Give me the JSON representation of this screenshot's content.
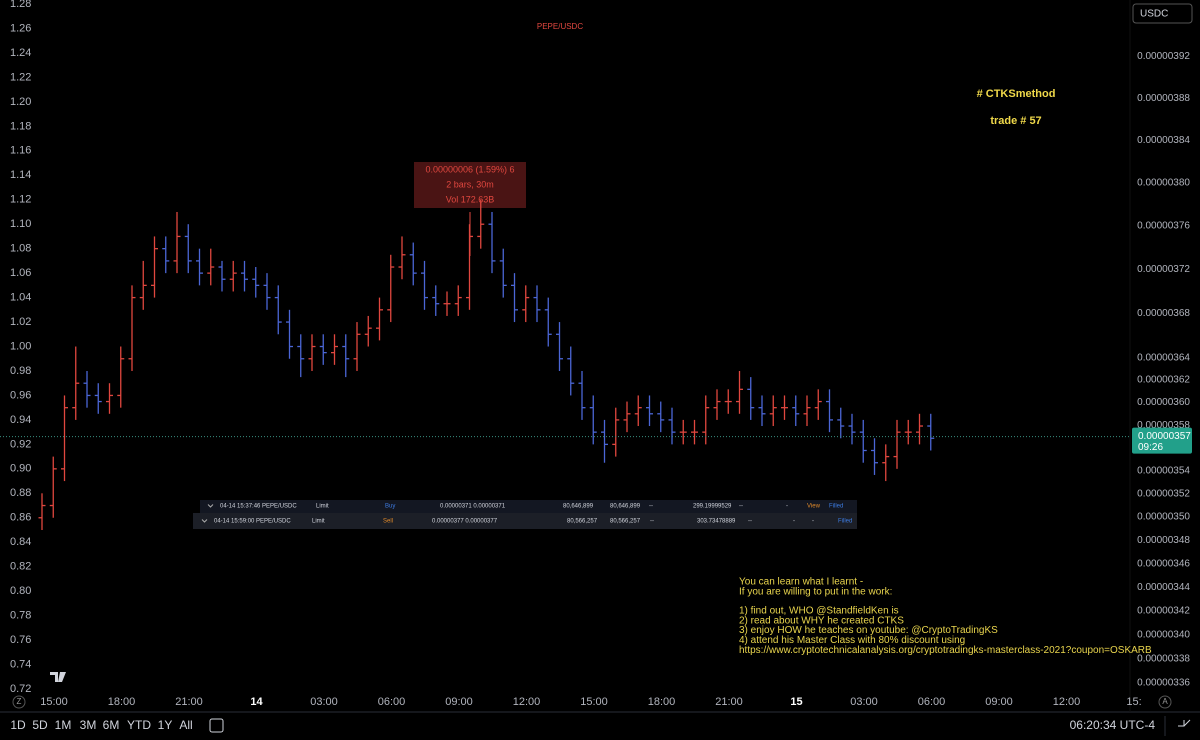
{
  "chart_data": {
    "type": "candlestick",
    "title": "PEPE/USDC",
    "up_color": "#e0473f",
    "down_color": "#4b66d6",
    "open": [
      0.86,
      0.87,
      0.9,
      0.95,
      0.97,
      0.96,
      0.955,
      0.96,
      0.99,
      1.04,
      1.05,
      1.08,
      1.07,
      1.09,
      1.07,
      1.06,
      1.065,
      1.055,
      1.06,
      1.055,
      1.05,
      1.04,
      1.02,
      1.0,
      0.99,
      1.0,
      0.995,
      1.0,
      0.99,
      1.01,
      1.015,
      1.03,
      1.065,
      1.075,
      1.06,
      1.04,
      1.035,
      1.035,
      1.04,
      1.09,
      1.1,
      1.07,
      1.05,
      1.03,
      1.04,
      1.03,
      1.01,
      0.99,
      0.97,
      0.95,
      0.93,
      0.92,
      0.94,
      0.945,
      0.95,
      0.945,
      0.94,
      0.93,
      0.93,
      0.93,
      0.95,
      0.955,
      0.955,
      0.965,
      0.95,
      0.945,
      0.95,
      0.95,
      0.945,
      0.95,
      0.955,
      0.94,
      0.935,
      0.93,
      0.915,
      0.905,
      0.91,
      0.93,
      0.93,
      0.935
    ],
    "high": [
      0.88,
      0.91,
      0.96,
      1.0,
      0.98,
      0.97,
      0.97,
      1.0,
      1.05,
      1.07,
      1.09,
      1.09,
      1.11,
      1.1,
      1.08,
      1.08,
      1.07,
      1.07,
      1.07,
      1.065,
      1.06,
      1.05,
      1.03,
      1.01,
      1.01,
      1.01,
      1.01,
      1.01,
      1.02,
      1.025,
      1.04,
      1.075,
      1.09,
      1.085,
      1.07,
      1.05,
      1.045,
      1.05,
      1.1,
      1.12,
      1.11,
      1.08,
      1.06,
      1.05,
      1.05,
      1.04,
      1.02,
      1.0,
      0.98,
      0.96,
      0.94,
      0.95,
      0.955,
      0.96,
      0.96,
      0.955,
      0.95,
      0.94,
      0.94,
      0.96,
      0.965,
      0.965,
      0.98,
      0.975,
      0.96,
      0.96,
      0.96,
      0.96,
      0.96,
      0.965,
      0.965,
      0.95,
      0.945,
      0.94,
      0.925,
      0.92,
      0.94,
      0.94,
      0.945,
      0.945
    ],
    "low": [
      0.85,
      0.86,
      0.89,
      0.94,
      0.95,
      0.945,
      0.945,
      0.95,
      0.98,
      1.03,
      1.04,
      1.06,
      1.06,
      1.06,
      1.05,
      1.05,
      1.045,
      1.045,
      1.045,
      1.04,
      1.03,
      1.01,
      0.99,
      0.975,
      0.98,
      0.985,
      0.985,
      0.975,
      0.98,
      1.0,
      1.005,
      1.02,
      1.055,
      1.05,
      1.03,
      1.025,
      1.025,
      1.025,
      1.03,
      1.08,
      1.06,
      1.04,
      1.02,
      1.02,
      1.02,
      1.0,
      0.98,
      0.96,
      0.94,
      0.92,
      0.905,
      0.91,
      0.93,
      0.935,
      0.935,
      0.93,
      0.92,
      0.92,
      0.92,
      0.92,
      0.94,
      0.945,
      0.945,
      0.94,
      0.935,
      0.935,
      0.94,
      0.935,
      0.935,
      0.94,
      0.93,
      0.925,
      0.92,
      0.905,
      0.895,
      0.89,
      0.9,
      0.92,
      0.92,
      0.915
    ],
    "close": [
      0.87,
      0.9,
      0.95,
      0.97,
      0.96,
      0.955,
      0.96,
      0.99,
      1.04,
      1.05,
      1.08,
      1.07,
      1.09,
      1.07,
      1.06,
      1.065,
      1.055,
      1.06,
      1.055,
      1.05,
      1.04,
      1.02,
      1.0,
      0.99,
      1.0,
      0.995,
      1.0,
      0.99,
      1.01,
      1.015,
      1.03,
      1.065,
      1.075,
      1.06,
      1.04,
      1.035,
      1.035,
      1.04,
      1.09,
      1.1,
      1.07,
      1.05,
      1.03,
      1.04,
      1.03,
      1.01,
      0.99,
      0.97,
      0.95,
      0.93,
      0.92,
      0.94,
      0.945,
      0.95,
      0.945,
      0.94,
      0.93,
      0.93,
      0.93,
      0.95,
      0.955,
      0.955,
      0.965,
      0.95,
      0.945,
      0.95,
      0.95,
      0.945,
      0.95,
      0.955,
      0.94,
      0.935,
      0.93,
      0.915,
      0.905,
      0.91,
      0.93,
      0.93,
      0.935,
      0.925
    ],
    "xticks": [
      "15:00",
      "18:00",
      "21:00",
      "14",
      "03:00",
      "06:00",
      "09:00",
      "12:00",
      "15:00",
      "18:00",
      "21:00",
      "15",
      "03:00",
      "06:00",
      "09:00",
      "12:00",
      "15:"
    ],
    "ylim": [
      0.7151,
      1.2833
    ],
    "yticks": [
      1.28,
      1.26,
      1.24,
      1.22,
      {
        "value": 1.2,
        "label": "1.20"
      },
      1.18,
      1.16,
      1.14,
      1.12,
      {
        "value": 1.1,
        "label": "1.10"
      },
      1.08,
      1.06,
      1.04,
      1.02,
      {
        "value": 1,
        "label": "1.00"
      },
      0.98,
      0.96,
      0.94,
      0.92,
      {
        "value": 0.9,
        "label": "0.90"
      },
      0.88,
      0.86,
      0.84,
      0.82,
      {
        "value": 0.8,
        "label": "0.80"
      },
      0.78,
      0.76,
      0.74,
      0.72
    ],
    "y2lim": [
      3.35e-06,
      3.975e-06
    ],
    "y2_log": true,
    "y2ticks": [
      {
        "value": 3.92e-06,
        "label": "0.00000392"
      },
      {
        "value": 3.88e-06,
        "label": "0.00000388"
      },
      {
        "value": 3.84e-06,
        "label": "0.00000384"
      },
      {
        "value": 3.8e-06,
        "label": "0.00000380"
      },
      {
        "value": 3.76e-06,
        "label": "0.00000376"
      },
      {
        "value": 3.72e-06,
        "label": "0.00000372"
      },
      {
        "value": 3.68e-06,
        "label": "0.00000368"
      },
      {
        "value": 3.64e-06,
        "label": "0.00000364"
      },
      {
        "value": 3.62e-06,
        "label": "0.00000362"
      },
      {
        "value": 3.6e-06,
        "label": "0.00000360"
      },
      {
        "value": 3.58e-06,
        "label": "0.00000358"
      },
      {
        "value": 3.54e-06,
        "label": "0.00000354"
      },
      {
        "value": 3.52e-06,
        "label": "0.00000352"
      },
      {
        "value": 3.5e-06,
        "label": "0.00000350"
      },
      {
        "value": 3.48e-06,
        "label": "0.00000348"
      },
      {
        "value": 3.46e-06,
        "label": "0.00000346"
      },
      {
        "value": 3.44e-06,
        "label": "0.00000344"
      },
      {
        "value": 3.42e-06,
        "label": "0.00000342"
      },
      {
        "value": 3.4e-06,
        "label": "0.00000340"
      },
      {
        "value": 3.38e-06,
        "label": "0.00000338"
      },
      {
        "value": 3.36e-06,
        "label": "0.00000336"
      }
    ],
    "last_price": {
      "value": 3.57e-06,
      "label": "0.00000357"
    },
    "countdown": "09:26"
  },
  "currency": "USDC",
  "axis_buttons": [
    "Z",
    "A"
  ],
  "measure": [
    "0.00000006 (1.59%) 6",
    "2 bars, 30m",
    "Vol 172.63B"
  ],
  "annotations": {
    "hashtag": "# CTKSmethod",
    "trade": "trade # 57",
    "note_intro": [
      "You can learn what I learnt -",
      "If you are willing to put in the work:"
    ],
    "note_steps": [
      "1) find out, WHO @StandfieldKen is",
      "2) read about WHY he created CTKS",
      "3) enjoy HOW he teaches on youtube: @CryptoTradingKS",
      "4) attend his Master Class with 80% discount using",
      "https://www.cryptotechnicalanalysis.org/cryptotradingks-masterclass-2021?coupon=OSKARB"
    ]
  },
  "orders": {
    "rows": [
      [
        "04-14 15:37:46 PEPE/USDC",
        "Limit",
        "Buy",
        "0.00000371 0.00000371",
        "80,646,899",
        "80,646,899",
        "--",
        "299.19999529",
        "--",
        "-",
        "View",
        "Filled"
      ],
      [
        "04-14 15:59:00 PEPE/USDC",
        "Limit",
        "Sell",
        "0.00000377 0.00000377",
        "80,566,257",
        "80,566,257",
        "--",
        "303.73478889",
        "--",
        "-",
        "-",
        "Filled"
      ]
    ]
  },
  "toolbar": {
    "ranges": [
      "1D",
      "5D",
      "1M",
      "3M",
      "6M",
      "YTD",
      "1Y",
      "All"
    ],
    "clock": "06:20:34 UTC-4"
  }
}
